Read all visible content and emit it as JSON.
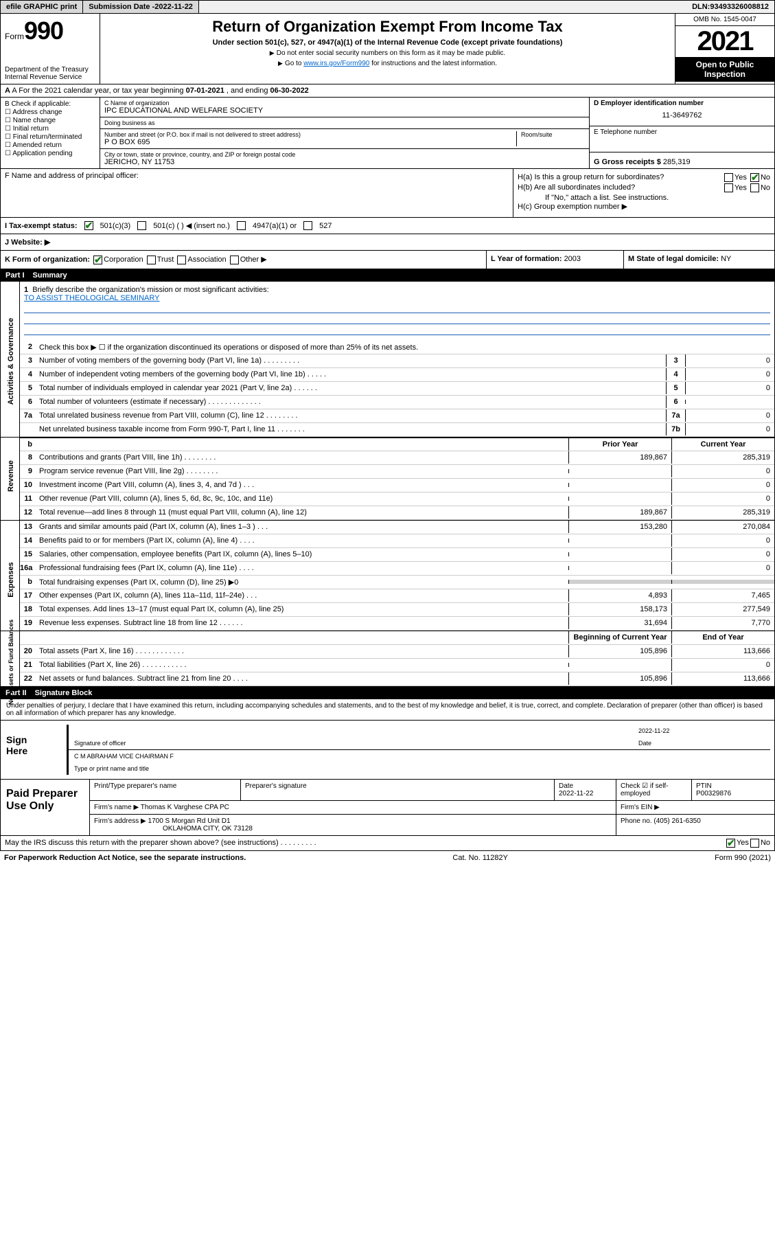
{
  "topbar": {
    "efile": "efile GRAPHIC print",
    "submission_label": "Submission Date - ",
    "submission_date": "2022-11-22",
    "dln_label": "DLN: ",
    "dln": "93493326008812"
  },
  "header": {
    "form_prefix": "Form",
    "form_number": "990",
    "dept": "Department of the Treasury",
    "irs": "Internal Revenue Service",
    "title": "Return of Organization Exempt From Income Tax",
    "subtitle": "Under section 501(c), 527, or 4947(a)(1) of the Internal Revenue Code (except private foundations)",
    "note1": "Do not enter social security numbers on this form as it may be made public.",
    "note2_pre": "Go to ",
    "note2_link": "www.irs.gov/Form990",
    "note2_post": " for instructions and the latest information.",
    "omb": "OMB No. 1545-0047",
    "year": "2021",
    "open": "Open to Public Inspection"
  },
  "row_a": {
    "prefix": "A For the 2021 calendar year, or tax year beginning ",
    "begin": "07-01-2021",
    "mid": " , and ending ",
    "end": "06-30-2022"
  },
  "col_b": {
    "label": "B Check if applicable:",
    "opts": [
      "Address change",
      "Name change",
      "Initial return",
      "Final return/terminated",
      "Amended return",
      "Application pending"
    ]
  },
  "col_c": {
    "name_lbl": "C Name of organization",
    "name": "IPC EDUCATIONAL AND WELFARE SOCIETY",
    "dba_lbl": "Doing business as",
    "dba": "",
    "addr_lbl": "Number and street (or P.O. box if mail is not delivered to street address)",
    "room_lbl": "Room/suite",
    "addr": "P O BOX 695",
    "city_lbl": "City or town, state or province, country, and ZIP or foreign postal code",
    "city": "JERICHO, NY  11753"
  },
  "col_d": {
    "d_lbl": "D Employer identification number",
    "d_val": "11-3649762",
    "e_lbl": "E Telephone number",
    "e_val": "",
    "g_lbl": "G Gross receipts $ ",
    "g_val": "285,319"
  },
  "f": {
    "lbl": "F  Name and address of principal officer:",
    "val": ""
  },
  "h": {
    "ha": "H(a)  Is this a group return for subordinates?",
    "hb": "H(b)  Are all subordinates included?",
    "hb_note": "If \"No,\" attach a list. See instructions.",
    "hc": "H(c)  Group exemption number ▶",
    "yes": "Yes",
    "no": "No"
  },
  "row_i": {
    "lbl": "I    Tax-exempt status:",
    "o1": "501(c)(3)",
    "o2": "501(c) (  ) ◀ (insert no.)",
    "o3": "4947(a)(1) or",
    "o4": "527"
  },
  "row_j": {
    "lbl": "J   Website: ▶",
    "val": ""
  },
  "row_k": {
    "kl": "K Form of organization:",
    "corp": "Corporation",
    "trust": "Trust",
    "assoc": "Association",
    "other": "Other ▶",
    "km_lbl": "L Year of formation: ",
    "km_val": "2003",
    "kr_lbl": "M State of legal domicile: ",
    "kr_val": "NY"
  },
  "part1": {
    "num": "Part I",
    "title": "Summary"
  },
  "mission": {
    "n": "1",
    "lbl": "Briefly describe the organization's mission or most significant activities:",
    "val": "TO ASSIST THEOLOGICAL SEMINARY"
  },
  "tabs": {
    "gov": "Activities & Governance",
    "rev": "Revenue",
    "exp": "Expenses",
    "net": "Net Assets or Fund Balances"
  },
  "lines_gov": [
    {
      "n": "2",
      "t": "Check this box ▶ ☐  if the organization discontinued its operations or disposed of more than 25% of its net assets."
    },
    {
      "n": "3",
      "t": "Number of voting members of the governing body (Part VI, line 1a)   .    .    .    .    .    .    .    .    .",
      "bn": "3",
      "bv": "0"
    },
    {
      "n": "4",
      "t": "Number of independent voting members of the governing body (Part VI, line 1b)  .    .    .    .    .",
      "bn": "4",
      "bv": "0"
    },
    {
      "n": "5",
      "t": "Total number of individuals employed in calendar year 2021 (Part V, line 2a)   .    .    .    .    .    .",
      "bn": "5",
      "bv": "0"
    },
    {
      "n": "6",
      "t": "Total number of volunteers (estimate if necessary)   .    .    .    .    .    .    .    .    .    .    .    .    .",
      "bn": "6",
      "bv": ""
    },
    {
      "n": "7a",
      "t": "Total unrelated business revenue from Part VIII, column (C), line 12   .    .    .    .    .    .    .    .",
      "bn": "7a",
      "bv": "0"
    },
    {
      "n": "",
      "t": "Net unrelated business taxable income from Form 990-T, Part I, line 11   .    .    .    .    .    .    .",
      "bn": "7b",
      "bv": "0"
    }
  ],
  "col_hdrs": {
    "prior": "Prior Year",
    "current": "Current Year",
    "begin": "Beginning of Current Year",
    "end": "End of Year"
  },
  "lines_rev": [
    {
      "n": "8",
      "t": "Contributions and grants (Part VIII, line 1h)   .    .    .    .    .    .    .    .",
      "p": "189,867",
      "c": "285,319"
    },
    {
      "n": "9",
      "t": "Program service revenue (Part VIII, line 2g)   .    .    .    .    .    .    .    .",
      "p": "",
      "c": "0"
    },
    {
      "n": "10",
      "t": "Investment income (Part VIII, column (A), lines 3, 4, and 7d )   .    .    .",
      "p": "",
      "c": "0"
    },
    {
      "n": "11",
      "t": "Other revenue (Part VIII, column (A), lines 5, 6d, 8c, 9c, 10c, and 11e)",
      "p": "",
      "c": "0"
    },
    {
      "n": "12",
      "t": "Total revenue—add lines 8 through 11 (must equal Part VIII, column (A), line 12)",
      "p": "189,867",
      "c": "285,319"
    }
  ],
  "lines_exp": [
    {
      "n": "13",
      "t": "Grants and similar amounts paid (Part IX, column (A), lines 1–3 )   .    .    .",
      "p": "153,280",
      "c": "270,084"
    },
    {
      "n": "14",
      "t": "Benefits paid to or for members (Part IX, column (A), line 4)   .    .    .    .",
      "p": "",
      "c": "0"
    },
    {
      "n": "15",
      "t": "Salaries, other compensation, employee benefits (Part IX, column (A), lines 5–10)",
      "p": "",
      "c": "0"
    },
    {
      "n": "16a",
      "t": "Professional fundraising fees (Part IX, column (A), line 11e)   .    .    .    .",
      "p": "",
      "c": "0"
    },
    {
      "n": "b",
      "t": "Total fundraising expenses (Part IX, column (D), line 25) ▶0",
      "p": "grey",
      "c": "grey"
    },
    {
      "n": "17",
      "t": "Other expenses (Part IX, column (A), lines 11a–11d, 11f–24e)   .    .    .",
      "p": "4,893",
      "c": "7,465"
    },
    {
      "n": "18",
      "t": "Total expenses. Add lines 13–17 (must equal Part IX, column (A), line 25)",
      "p": "158,173",
      "c": "277,549"
    },
    {
      "n": "19",
      "t": "Revenue less expenses. Subtract line 18 from line 12   .    .    .    .    .    .",
      "p": "31,694",
      "c": "7,770"
    }
  ],
  "lines_net": [
    {
      "n": "20",
      "t": "Total assets (Part X, line 16)   .    .    .    .    .    .    .    .    .    .    .    .",
      "p": "105,896",
      "c": "113,666"
    },
    {
      "n": "21",
      "t": "Total liabilities (Part X, line 26)   .    .    .    .    .    .    .    .    .    .    .",
      "p": "",
      "c": "0"
    },
    {
      "n": "22",
      "t": "Net assets or fund balances. Subtract line 21 from line 20   .    .    .    .",
      "p": "105,896",
      "c": "113,666"
    }
  ],
  "part2": {
    "num": "Part II",
    "title": "Signature Block"
  },
  "penalty": "Under penalties of perjury, I declare that I have examined this return, including accompanying schedules and statements, and to the best of my knowledge and belief, it is true, correct, and complete. Declaration of preparer (other than officer) is based on all information of which preparer has any knowledge.",
  "sign": {
    "here": "Sign Here",
    "sig_lbl": "Signature of officer",
    "date_lbl": "Date",
    "date": "2022-11-22",
    "name": "C M ABRAHAM  VICE CHAIRMAN F",
    "name_lbl": "Type or print name and title"
  },
  "paid": {
    "left": "Paid Preparer Use Only",
    "h1": "Print/Type preparer's name",
    "h2": "Preparer's signature",
    "h3": "Date",
    "h3v": "2022-11-22",
    "h4": "Check ☑ if self-employed",
    "h5": "PTIN",
    "h5v": "P00329876",
    "firm_lbl": "Firm's name     ▶ ",
    "firm": "Thomas K Varghese CPA PC",
    "ein_lbl": "Firm's EIN ▶",
    "addr_lbl": "Firm's address ▶ ",
    "addr1": "1700 S Morgan Rd Unit D1",
    "addr2": "OKLAHOMA CITY, OK  73128",
    "phone_lbl": "Phone no. ",
    "phone": "(405) 261-6350"
  },
  "footer": {
    "may": "May the IRS discuss this return with the preparer shown above? (see instructions)   .    .    .    .    .    .    .    .    .",
    "yes": "Yes",
    "no": "No",
    "pra": "For Paperwork Reduction Act Notice, see the separate instructions.",
    "cat": "Cat. No. 11282Y",
    "form": "Form 990 (2021)"
  }
}
